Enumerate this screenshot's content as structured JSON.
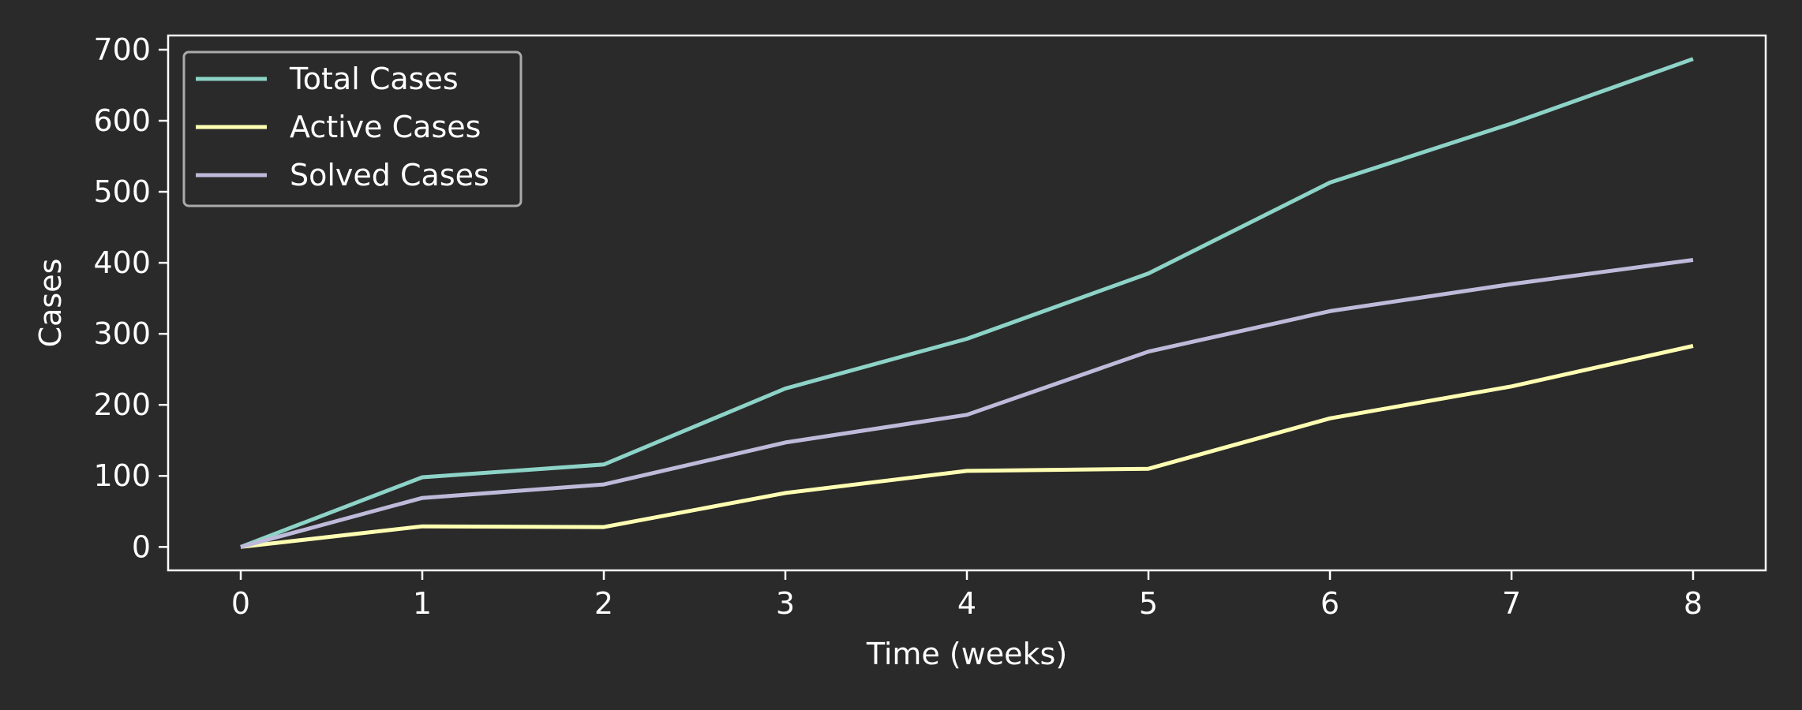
{
  "chart_data": {
    "type": "line",
    "title": "",
    "xlabel": "Time (weeks)",
    "ylabel": "Cases",
    "x": [
      0,
      1,
      2,
      3,
      4,
      5,
      6,
      7,
      8
    ],
    "xlim": [
      -0.4,
      8.4
    ],
    "ylim": [
      -33,
      720
    ],
    "xticks": [
      0,
      1,
      2,
      3,
      4,
      5,
      6,
      7,
      8
    ],
    "yticks": [
      0,
      100,
      200,
      300,
      400,
      500,
      600,
      700
    ],
    "grid": false,
    "legend_position": "top-left",
    "series": [
      {
        "name": "Total Cases",
        "color": "#8dd3c7",
        "values": [
          0,
          98,
          116,
          223,
          293,
          385,
          513,
          596,
          687
        ]
      },
      {
        "name": "Active Cases",
        "color": "#ffffb3",
        "values": [
          0,
          29,
          28,
          76,
          107,
          110,
          181,
          226,
          283
        ]
      },
      {
        "name": "Solved Cases",
        "color": "#bebada",
        "values": [
          0,
          69,
          88,
          147,
          186,
          275,
          332,
          370,
          404
        ]
      }
    ]
  },
  "colors": {
    "background": "#2a2a2a",
    "axes": "#ffffff",
    "legend_border": "#aaaaaa"
  }
}
